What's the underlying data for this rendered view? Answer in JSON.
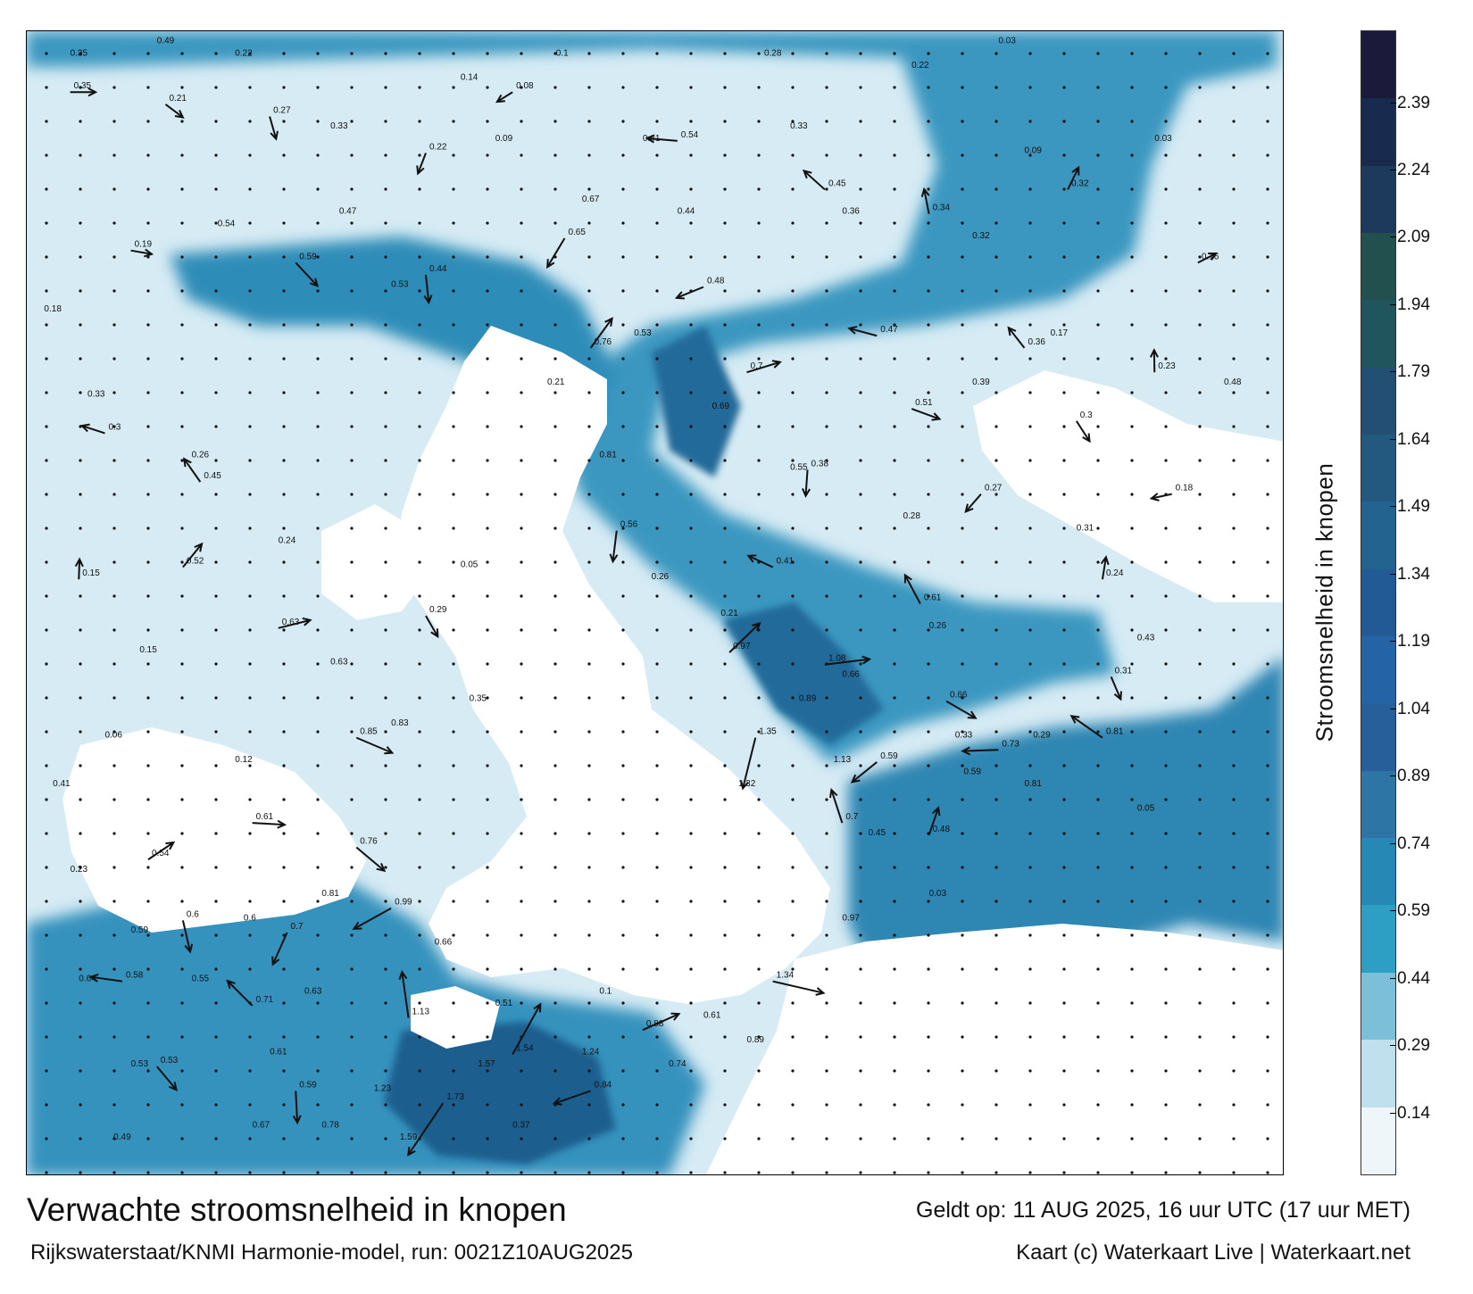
{
  "title": "Verwachte stroomsnelheid in knopen",
  "subtitle": "Rijkswaterstaat/KNMI Harmonie-model, run: 0021Z10AUG2025",
  "valid_time": "Geldt op: 11 AUG 2025, 16 uur UTC (17 uur MET)",
  "credit": "Kaart (c) Waterkaart Live | Waterkaart.net",
  "colorbar": {
    "label": "Stroomsnelheid in knopen",
    "ticks": [
      "2.39",
      "2.24",
      "2.09",
      "1.94",
      "1.79",
      "1.64",
      "1.49",
      "1.34",
      "1.19",
      "1.04",
      "0.89",
      "0.74",
      "0.59",
      "0.44",
      "0.29",
      "0.14"
    ],
    "colors": [
      "#1b1a3a",
      "#182a4e",
      "#1d3a5c",
      "#22504f",
      "#20555e",
      "#224f73",
      "#23597e",
      "#23638f",
      "#215a95",
      "#2363a6",
      "#265f99",
      "#2d75a5",
      "#2688b5",
      "#2d9ec4",
      "#7cbfd8",
      "#bfe0ec",
      "#eef6fa"
    ]
  },
  "map": {
    "sea_color": "#3596bf",
    "shallow_color": "#d3eaf3",
    "land_color": "#ffffff",
    "arrows": [
      {
        "lon": 0.5,
        "lat": 58.9,
        "label": "0.35"
      },
      {
        "lon": 1.6,
        "lat": 58.8,
        "label": "0.21"
      },
      {
        "lon": 2.8,
        "lat": 58.7,
        "label": "0.27"
      },
      {
        "lon": 4.6,
        "lat": 58.4,
        "label": "0.22"
      },
      {
        "lon": 5.6,
        "lat": 58.9,
        "label": "0.08"
      },
      {
        "lon": 7.5,
        "lat": 58.5,
        "label": "0.54"
      },
      {
        "lon": 9.2,
        "lat": 58.1,
        "label": "0.45"
      },
      {
        "lon": 10.4,
        "lat": 57.9,
        "label": "0.34"
      },
      {
        "lon": 12.0,
        "lat": 58.1,
        "label": "0.32"
      },
      {
        "lon": 13.5,
        "lat": 57.5,
        "label": "0.16"
      },
      {
        "lon": 1.2,
        "lat": 57.6,
        "label": "0.19"
      },
      {
        "lon": 3.1,
        "lat": 57.5,
        "label": "0.59"
      },
      {
        "lon": 4.6,
        "lat": 57.4,
        "label": "0.44"
      },
      {
        "lon": 6.2,
        "lat": 57.7,
        "label": "0.65"
      },
      {
        "lon": 7.8,
        "lat": 57.3,
        "label": "0.48"
      },
      {
        "lon": 9.8,
        "lat": 56.9,
        "label": "0.47"
      },
      {
        "lon": 11.5,
        "lat": 56.8,
        "label": "0.36"
      },
      {
        "lon": 13.0,
        "lat": 56.6,
        "label": "0.23"
      },
      {
        "lon": 6.5,
        "lat": 56.8,
        "label": "0.76"
      },
      {
        "lon": 8.3,
        "lat": 56.6,
        "label": "0.7"
      },
      {
        "lon": 10.2,
        "lat": 56.3,
        "label": "0.51"
      },
      {
        "lon": 12.1,
        "lat": 56.2,
        "label": "0.3"
      },
      {
        "lon": 9.0,
        "lat": 55.8,
        "label": "0.38"
      },
      {
        "lon": 11.0,
        "lat": 55.6,
        "label": "0.27"
      },
      {
        "lon": 13.2,
        "lat": 55.6,
        "label": "0.18"
      },
      {
        "lon": 8.6,
        "lat": 55.0,
        "label": "0.41"
      },
      {
        "lon": 10.3,
        "lat": 54.7,
        "label": "0.61"
      },
      {
        "lon": 12.4,
        "lat": 54.9,
        "label": "0.24"
      },
      {
        "lon": 8.1,
        "lat": 54.3,
        "label": "0.97"
      },
      {
        "lon": 9.2,
        "lat": 54.2,
        "label": "1.08"
      },
      {
        "lon": 10.6,
        "lat": 53.9,
        "label": "0.66"
      },
      {
        "lon": 12.5,
        "lat": 54.1,
        "label": "0.31"
      },
      {
        "lon": 8.4,
        "lat": 53.6,
        "label": "1.35"
      },
      {
        "lon": 9.8,
        "lat": 53.4,
        "label": "0.59"
      },
      {
        "lon": 11.2,
        "lat": 53.5,
        "label": "0.73"
      },
      {
        "lon": 12.4,
        "lat": 53.6,
        "label": "0.81"
      },
      {
        "lon": 9.4,
        "lat": 52.9,
        "label": "0.7"
      },
      {
        "lon": 10.4,
        "lat": 52.8,
        "label": "0.48"
      },
      {
        "lon": 1.4,
        "lat": 52.6,
        "label": "0.54"
      },
      {
        "lon": 2.6,
        "lat": 52.9,
        "label": "0.61"
      },
      {
        "lon": 3.8,
        "lat": 52.7,
        "label": "0.76"
      },
      {
        "lon": 1.8,
        "lat": 52.1,
        "label": "0.6"
      },
      {
        "lon": 3.0,
        "lat": 52.0,
        "label": "0.7"
      },
      {
        "lon": 4.2,
        "lat": 52.2,
        "label": "0.99"
      },
      {
        "lon": 1.1,
        "lat": 51.6,
        "label": "0.58"
      },
      {
        "lon": 2.6,
        "lat": 51.4,
        "label": "0.71"
      },
      {
        "lon": 4.4,
        "lat": 51.3,
        "label": "1.13"
      },
      {
        "lon": 5.6,
        "lat": 51.0,
        "label": "1.54"
      },
      {
        "lon": 7.1,
        "lat": 51.2,
        "label": "0.88"
      },
      {
        "lon": 8.6,
        "lat": 51.6,
        "label": "1.34"
      },
      {
        "lon": 1.5,
        "lat": 50.9,
        "label": "0.53"
      },
      {
        "lon": 3.1,
        "lat": 50.7,
        "label": "0.59"
      },
      {
        "lon": 4.8,
        "lat": 50.6,
        "label": "1.73"
      },
      {
        "lon": 6.5,
        "lat": 50.7,
        "label": "0.84"
      },
      {
        "lon": 0.9,
        "lat": 56.1,
        "label": "0.3"
      },
      {
        "lon": 2.0,
        "lat": 55.7,
        "label": "0.45"
      },
      {
        "lon": 0.6,
        "lat": 54.9,
        "label": "0.15"
      },
      {
        "lon": 1.8,
        "lat": 55.0,
        "label": "0.52"
      },
      {
        "lon": 2.9,
        "lat": 54.5,
        "label": "0.63"
      },
      {
        "lon": 3.8,
        "lat": 53.6,
        "label": "0.85"
      },
      {
        "lon": 4.6,
        "lat": 54.6,
        "label": "0.29"
      },
      {
        "lon": 6.8,
        "lat": 55.3,
        "label": "0.56"
      }
    ],
    "labels": [
      {
        "lon": 0.5,
        "lat": 59.2,
        "text": "0.35"
      },
      {
        "lon": 1.5,
        "lat": 59.3,
        "text": "0.49"
      },
      {
        "lon": 2.4,
        "lat": 59.2,
        "text": "0.22"
      },
      {
        "lon": 5.0,
        "lat": 59.0,
        "text": "0.14"
      },
      {
        "lon": 6.1,
        "lat": 59.2,
        "text": "0.1"
      },
      {
        "lon": 8.5,
        "lat": 59.2,
        "text": "0.28"
      },
      {
        "lon": 10.2,
        "lat": 59.1,
        "text": "0.22"
      },
      {
        "lon": 11.2,
        "lat": 59.3,
        "text": "0.03"
      },
      {
        "lon": 3.5,
        "lat": 58.6,
        "text": "0.33"
      },
      {
        "lon": 5.4,
        "lat": 58.5,
        "text": "0.09"
      },
      {
        "lon": 7.1,
        "lat": 58.5,
        "text": "0.41"
      },
      {
        "lon": 8.8,
        "lat": 58.6,
        "text": "0.33"
      },
      {
        "lon": 11.5,
        "lat": 58.4,
        "text": "0.09"
      },
      {
        "lon": 13.0,
        "lat": 58.5,
        "text": "0.03"
      },
      {
        "lon": 2.2,
        "lat": 57.8,
        "text": "0.54"
      },
      {
        "lon": 3.6,
        "lat": 57.9,
        "text": "0.47"
      },
      {
        "lon": 6.4,
        "lat": 58.0,
        "text": "0.67"
      },
      {
        "lon": 7.5,
        "lat": 57.9,
        "text": "0.44"
      },
      {
        "lon": 9.4,
        "lat": 57.9,
        "text": "0.36"
      },
      {
        "lon": 10.9,
        "lat": 57.7,
        "text": "0.32"
      },
      {
        "lon": 0.2,
        "lat": 57.1,
        "text": "0.18"
      },
      {
        "lon": 4.2,
        "lat": 57.3,
        "text": "0.53"
      },
      {
        "lon": 7.0,
        "lat": 56.9,
        "text": "0.53"
      },
      {
        "lon": 11.8,
        "lat": 56.9,
        "text": "0.17"
      },
      {
        "lon": 0.7,
        "lat": 56.4,
        "text": "0.33"
      },
      {
        "lon": 6.0,
        "lat": 56.5,
        "text": "0.21"
      },
      {
        "lon": 7.9,
        "lat": 56.3,
        "text": "0.69"
      },
      {
        "lon": 10.9,
        "lat": 56.5,
        "text": "0.39"
      },
      {
        "lon": 13.8,
        "lat": 56.5,
        "text": "0.48"
      },
      {
        "lon": 6.6,
        "lat": 55.9,
        "text": "0.81"
      },
      {
        "lon": 8.8,
        "lat": 55.8,
        "text": "0.55"
      },
      {
        "lon": 10.1,
        "lat": 55.4,
        "text": "0.28"
      },
      {
        "lon": 12.1,
        "lat": 55.3,
        "text": "0.31"
      },
      {
        "lon": 5.0,
        "lat": 55.0,
        "text": "0.05"
      },
      {
        "lon": 7.2,
        "lat": 54.9,
        "text": "0.26"
      },
      {
        "lon": 8.0,
        "lat": 54.6,
        "text": "0.21"
      },
      {
        "lon": 10.4,
        "lat": 54.5,
        "text": "0.26"
      },
      {
        "lon": 12.8,
        "lat": 54.4,
        "text": "0.43"
      },
      {
        "lon": 8.9,
        "lat": 53.9,
        "text": "0.89"
      },
      {
        "lon": 9.4,
        "lat": 54.1,
        "text": "0.66"
      },
      {
        "lon": 10.7,
        "lat": 53.6,
        "text": "0.33"
      },
      {
        "lon": 11.6,
        "lat": 53.6,
        "text": "0.29"
      },
      {
        "lon": 8.2,
        "lat": 53.2,
        "text": "1.32"
      },
      {
        "lon": 9.3,
        "lat": 53.4,
        "text": "1.13"
      },
      {
        "lon": 10.8,
        "lat": 53.3,
        "text": "0.59"
      },
      {
        "lon": 11.5,
        "lat": 53.2,
        "text": "0.81"
      },
      {
        "lon": 12.8,
        "lat": 53.0,
        "text": "0.05"
      },
      {
        "lon": 9.7,
        "lat": 52.8,
        "text": "0.45"
      },
      {
        "lon": 10.4,
        "lat": 52.3,
        "text": "0.03"
      },
      {
        "lon": 9.4,
        "lat": 52.1,
        "text": "0.97"
      },
      {
        "lon": 0.3,
        "lat": 53.2,
        "text": "0.41"
      },
      {
        "lon": 0.5,
        "lat": 52.5,
        "text": "0.23"
      },
      {
        "lon": 1.2,
        "lat": 52.0,
        "text": "0.59"
      },
      {
        "lon": 2.5,
        "lat": 52.1,
        "text": "0.6"
      },
      {
        "lon": 3.4,
        "lat": 52.3,
        "text": "0.81"
      },
      {
        "lon": 4.7,
        "lat": 51.9,
        "text": "0.66"
      },
      {
        "lon": 0.6,
        "lat": 51.6,
        "text": "0.64"
      },
      {
        "lon": 1.9,
        "lat": 51.6,
        "text": "0.55"
      },
      {
        "lon": 3.2,
        "lat": 51.5,
        "text": "0.63"
      },
      {
        "lon": 5.4,
        "lat": 51.4,
        "text": "0.51"
      },
      {
        "lon": 6.6,
        "lat": 51.5,
        "text": "0.1"
      },
      {
        "lon": 7.8,
        "lat": 51.3,
        "text": "0.61"
      },
      {
        "lon": 1.2,
        "lat": 50.9,
        "text": "0.53"
      },
      {
        "lon": 2.8,
        "lat": 51.0,
        "text": "0.61"
      },
      {
        "lon": 4.0,
        "lat": 50.7,
        "text": "1.23"
      },
      {
        "lon": 5.2,
        "lat": 50.9,
        "text": "1.57"
      },
      {
        "lon": 6.4,
        "lat": 51.0,
        "text": "1.24"
      },
      {
        "lon": 7.4,
        "lat": 50.9,
        "text": "0.74"
      },
      {
        "lon": 8.3,
        "lat": 51.1,
        "text": "0.89"
      },
      {
        "lon": 2.6,
        "lat": 50.4,
        "text": "0.67"
      },
      {
        "lon": 4.3,
        "lat": 50.3,
        "text": "1.59"
      },
      {
        "lon": 5.6,
        "lat": 50.4,
        "text": "0.37"
      },
      {
        "lon": 1.0,
        "lat": 50.3,
        "text": "0.49"
      },
      {
        "lon": 3.4,
        "lat": 50.4,
        "text": "0.78"
      },
      {
        "lon": 1.9,
        "lat": 55.9,
        "text": "0.26"
      },
      {
        "lon": 2.9,
        "lat": 55.2,
        "text": "0.24"
      },
      {
        "lon": 1.3,
        "lat": 54.3,
        "text": "0.15"
      },
      {
        "lon": 3.5,
        "lat": 54.2,
        "text": "0.63"
      },
      {
        "lon": 4.2,
        "lat": 53.7,
        "text": "0.83"
      },
      {
        "lon": 5.1,
        "lat": 53.9,
        "text": "0.35"
      },
      {
        "lon": 0.9,
        "lat": 53.6,
        "text": "0.06"
      },
      {
        "lon": 2.4,
        "lat": 53.4,
        "text": "0.12"
      }
    ]
  }
}
